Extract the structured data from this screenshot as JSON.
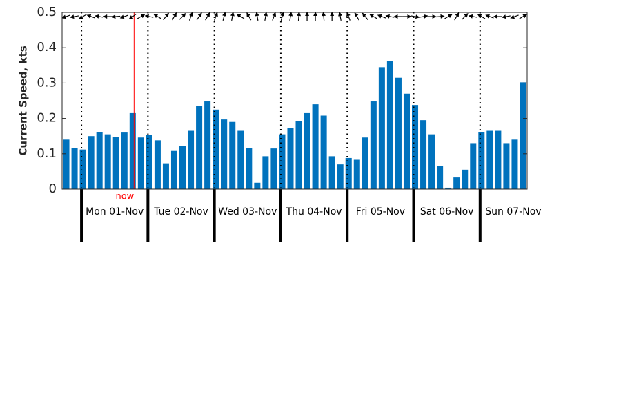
{
  "chart_data": {
    "type": "bar",
    "ylabel": "Current Speed, kts",
    "x": [
      1.5,
      4.5,
      7.5,
      10.5,
      13.5,
      16.5,
      19.5,
      22.5,
      25.5,
      28.5,
      31.5,
      34.5,
      37.5,
      40.5,
      43.5,
      46.5,
      49.5,
      52.5,
      55.5,
      58.5,
      61.5,
      64.5,
      67.5,
      70.5,
      73.5,
      76.5,
      79.5,
      82.5,
      85.5,
      88.5,
      91.5,
      94.5,
      97.5,
      100.5,
      103.5,
      106.5,
      109.5,
      112.5,
      115.5,
      118.5,
      121.5,
      124.5,
      127.5,
      130.5,
      133.5,
      136.5,
      139.5,
      142.5,
      145.5,
      148.5,
      151.5,
      154.5,
      157.5,
      160.5,
      163.5,
      166.5
    ],
    "values": [
      0.14,
      0.117,
      0.112,
      0.15,
      0.162,
      0.155,
      0.148,
      0.16,
      0.215,
      0.146,
      0.153,
      0.138,
      0.073,
      0.108,
      0.122,
      0.165,
      0.235,
      0.248,
      0.225,
      0.197,
      0.19,
      0.165,
      0.117,
      0.018,
      0.093,
      0.115,
      0.155,
      0.172,
      0.193,
      0.215,
      0.24,
      0.208,
      0.093,
      0.07,
      0.088,
      0.083,
      0.146,
      0.248,
      0.345,
      0.363,
      0.315,
      0.27,
      0.238,
      0.195,
      0.155,
      0.065,
      0.004,
      0.033,
      0.055,
      0.13,
      0.162,
      0.165,
      0.165,
      0.13,
      0.14,
      0.302
    ],
    "directions": [
      250,
      260,
      240,
      290,
      280,
      270,
      265,
      250,
      235,
      60,
      280,
      300,
      40,
      30,
      45,
      20,
      35,
      30,
      20,
      15,
      10,
      300,
      330,
      350,
      10,
      20,
      15,
      10,
      5,
      0,
      0,
      355,
      0,
      350,
      340,
      330,
      320,
      300,
      290,
      280,
      270,
      90,
      100,
      80,
      90,
      85,
      60,
      30,
      45,
      280,
      300,
      290,
      270,
      260,
      250,
      60
    ],
    "color": "#0072bd",
    "xlim": [
      0,
      168
    ],
    "ylim": [
      0,
      0.5
    ],
    "yticks": [
      0,
      0.1,
      0.2,
      0.3,
      0.4,
      0.5
    ],
    "day_boundaries": [
      7,
      31,
      55,
      79,
      103,
      127,
      151
    ],
    "xticks": [
      {
        "value": 19,
        "label": "Mon 01-Nov"
      },
      {
        "value": 43,
        "label": "Tue 02-Nov"
      },
      {
        "value": 67,
        "label": "Wed 03-Nov"
      },
      {
        "value": 91,
        "label": "Thu 04-Nov"
      },
      {
        "value": 115,
        "label": "Fri 05-Nov"
      },
      {
        "value": 139,
        "label": "Sat 06-Nov"
      },
      {
        "value": 163,
        "label": "Sun 07-Nov"
      }
    ],
    "now": {
      "label": "now",
      "x": 26
    }
  }
}
